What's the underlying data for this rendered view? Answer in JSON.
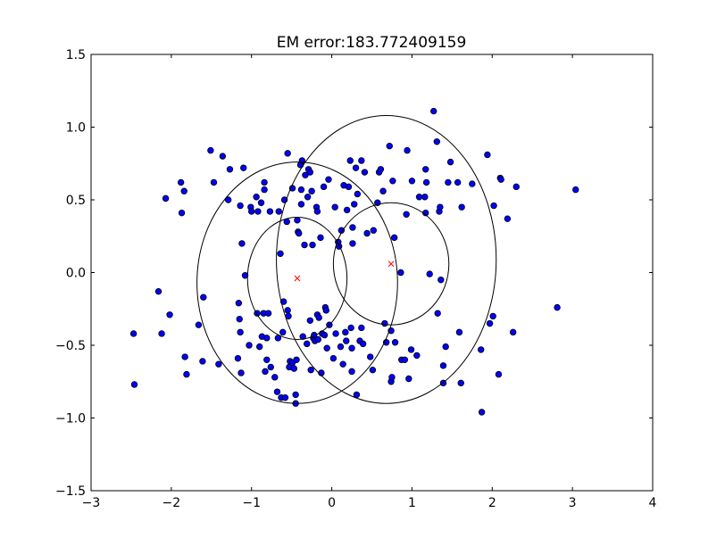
{
  "chart_data": {
    "type": "scatter",
    "title": "EM error:183.772409159",
    "xlabel": "",
    "ylabel": "",
    "xlim": [
      -3,
      4
    ],
    "ylim": [
      -1.5,
      1.5
    ],
    "xticks": [
      -3,
      -2,
      -1,
      0,
      1,
      2,
      3,
      4
    ],
    "yticks": [
      -1.5,
      -1.0,
      -0.5,
      0.0,
      0.5,
      1.0,
      1.5
    ],
    "xtick_labels": [
      "−3",
      "−2",
      "−1",
      "0",
      "1",
      "2",
      "3",
      "4"
    ],
    "ytick_labels": [
      "−1.5",
      "−1.0",
      "−0.5",
      "0.0",
      "0.5",
      "1.0",
      "1.5"
    ],
    "grid": false,
    "legend": "none",
    "point_color": "#0000ff",
    "center_color": "#ff0000",
    "ellipse_color": "#000000",
    "points": [
      [
        -2.47,
        -0.42
      ],
      [
        -2.46,
        -0.77
      ],
      [
        -2.16,
        -0.13
      ],
      [
        -2.12,
        -0.42
      ],
      [
        -2.07,
        0.51
      ],
      [
        -2.02,
        -0.29
      ],
      [
        -1.88,
        0.62
      ],
      [
        -1.87,
        0.41
      ],
      [
        -1.84,
        0.56
      ],
      [
        -1.83,
        -0.58
      ],
      [
        -1.81,
        -0.7
      ],
      [
        -1.66,
        -0.36
      ],
      [
        -1.61,
        -0.61
      ],
      [
        -1.6,
        -0.17
      ],
      [
        -1.51,
        0.84
      ],
      [
        -1.47,
        0.62
      ],
      [
        -1.41,
        -0.63
      ],
      [
        -1.36,
        0.8
      ],
      [
        -1.29,
        0.5
      ],
      [
        -1.27,
        0.71
      ],
      [
        -1.17,
        -0.59
      ],
      [
        -1.16,
        -0.21
      ],
      [
        -1.15,
        -0.32
      ],
      [
        -1.14,
        -0.41
      ],
      [
        -1.14,
        0.46
      ],
      [
        -1.13,
        -0.69
      ],
      [
        -1.12,
        0.2
      ],
      [
        -1.1,
        0.72
      ],
      [
        -1.08,
        -0.02
      ],
      [
        -1.03,
        -0.5
      ],
      [
        -1.01,
        0.45
      ],
      [
        -1.0,
        0.42
      ],
      [
        -0.94,
        0.52
      ],
      [
        -0.93,
        -0.28
      ],
      [
        -0.92,
        0.42
      ],
      [
        -0.9,
        -0.51
      ],
      [
        -0.88,
        0.48
      ],
      [
        -0.87,
        -0.44
      ],
      [
        -0.85,
        -0.28
      ],
      [
        -0.84,
        0.57
      ],
      [
        -0.84,
        0.62
      ],
      [
        -0.83,
        -0.68
      ],
      [
        -0.81,
        -0.45
      ],
      [
        -0.81,
        -0.6
      ],
      [
        -0.79,
        -0.28
      ],
      [
        -0.77,
        0.42
      ],
      [
        -0.76,
        -0.65
      ],
      [
        -0.71,
        -0.72
      ],
      [
        -0.68,
        -0.82
      ],
      [
        -0.67,
        -0.45
      ],
      [
        -0.66,
        0.42
      ],
      [
        -0.64,
        0.13
      ],
      [
        -0.63,
        -0.86
      ],
      [
        -0.61,
        -0.41
      ],
      [
        -0.6,
        -0.2
      ],
      [
        -0.59,
        0.5
      ],
      [
        -0.58,
        -0.86
      ],
      [
        -0.56,
        0.35
      ],
      [
        -0.55,
        0.82
      ],
      [
        -0.55,
        -0.26
      ],
      [
        -0.54,
        -0.3
      ],
      [
        -0.53,
        -0.65
      ],
      [
        -0.52,
        -0.61
      ],
      [
        -0.49,
        0.58
      ],
      [
        -0.49,
        -0.62
      ],
      [
        -0.47,
        -0.66
      ],
      [
        -0.45,
        -0.84
      ],
      [
        -0.45,
        -0.9
      ],
      [
        -0.44,
        -0.6
      ],
      [
        -0.43,
        0.36
      ],
      [
        -0.42,
        0.28
      ],
      [
        -0.41,
        0.27
      ],
      [
        -0.39,
        0.74
      ],
      [
        -0.38,
        0.47
      ],
      [
        -0.38,
        0.57
      ],
      [
        -0.37,
        0.77
      ],
      [
        -0.36,
        -0.44
      ],
      [
        -0.34,
        0.19
      ],
      [
        -0.33,
        0.67
      ],
      [
        -0.31,
        -0.49
      ],
      [
        -0.3,
        0.52
      ],
      [
        -0.29,
        0.71
      ],
      [
        -0.27,
        0.69
      ],
      [
        -0.27,
        -0.33
      ],
      [
        -0.26,
        -0.67
      ],
      [
        -0.25,
        0.56
      ],
      [
        -0.24,
        0.19
      ],
      [
        -0.23,
        -0.45
      ],
      [
        -0.22,
        -0.43
      ],
      [
        -0.21,
        -0.47
      ],
      [
        -0.19,
        0.45
      ],
      [
        -0.18,
        0.42
      ],
      [
        -0.18,
        -0.29
      ],
      [
        -0.17,
        -0.46
      ],
      [
        -0.16,
        -0.31
      ],
      [
        -0.14,
        0.24
      ],
      [
        -0.13,
        -0.69
      ],
      [
        -0.12,
        -0.42
      ],
      [
        -0.1,
        0.59
      ],
      [
        -0.09,
        -0.43
      ],
      [
        -0.08,
        -0.24
      ],
      [
        -0.07,
        -0.26
      ],
      [
        -0.06,
        -0.52
      ],
      [
        -0.04,
        0.64
      ],
      [
        -0.03,
        -0.36
      ],
      [
        0.02,
        -0.59
      ],
      [
        0.04,
        0.45
      ],
      [
        0.05,
        -0.42
      ],
      [
        0.08,
        0.21
      ],
      [
        0.09,
        0.18
      ],
      [
        0.11,
        -0.51
      ],
      [
        0.12,
        0.29
      ],
      [
        0.14,
        -0.63
      ],
      [
        0.15,
        0.6
      ],
      [
        0.17,
        -0.41
      ],
      [
        0.18,
        -0.47
      ],
      [
        0.19,
        0.43
      ],
      [
        0.21,
        0.59
      ],
      [
        0.23,
        0.77
      ],
      [
        0.24,
        -0.38
      ],
      [
        0.25,
        -0.52
      ],
      [
        0.25,
        -0.68
      ],
      [
        0.26,
        0.2
      ],
      [
        0.26,
        0.31
      ],
      [
        0.28,
        0.47
      ],
      [
        0.3,
        0.72
      ],
      [
        0.31,
        -0.84
      ],
      [
        0.32,
        0.54
      ],
      [
        0.35,
        -0.47
      ],
      [
        0.37,
        -0.38
      ],
      [
        0.37,
        0.77
      ],
      [
        0.39,
        -0.49
      ],
      [
        0.41,
        0.69
      ],
      [
        0.44,
        0.27
      ],
      [
        0.48,
        -0.58
      ],
      [
        0.51,
        -0.67
      ],
      [
        0.52,
        0.29
      ],
      [
        0.57,
        0.48
      ],
      [
        0.59,
        0.69
      ],
      [
        0.61,
        0.71
      ],
      [
        0.64,
        0.56
      ],
      [
        0.66,
        -0.35
      ],
      [
        0.68,
        -0.48
      ],
      [
        0.72,
        0.87
      ],
      [
        0.74,
        -0.75
      ],
      [
        0.74,
        -0.4
      ],
      [
        0.75,
        -0.72
      ],
      [
        0.76,
        0.63
      ],
      [
        0.78,
        0.24
      ],
      [
        0.79,
        -0.48
      ],
      [
        0.86,
        0.0
      ],
      [
        0.87,
        -0.6
      ],
      [
        0.91,
        -0.6
      ],
      [
        0.93,
        0.4
      ],
      [
        0.94,
        0.84
      ],
      [
        0.96,
        -0.73
      ],
      [
        0.99,
        -0.53
      ],
      [
        1.0,
        0.63
      ],
      [
        1.06,
        -0.57
      ],
      [
        1.09,
        0.52
      ],
      [
        1.16,
        0.52
      ],
      [
        1.17,
        0.41
      ],
      [
        1.17,
        0.71
      ],
      [
        1.18,
        0.62
      ],
      [
        1.22,
        -0.01
      ],
      [
        1.27,
        1.11
      ],
      [
        1.31,
        0.9
      ],
      [
        1.32,
        -0.28
      ],
      [
        1.34,
        0.42
      ],
      [
        1.35,
        0.45
      ],
      [
        1.36,
        -0.05
      ],
      [
        1.39,
        -0.76
      ],
      [
        1.39,
        -0.64
      ],
      [
        1.42,
        -0.51
      ],
      [
        1.45,
        0.62
      ],
      [
        1.48,
        0.76
      ],
      [
        1.57,
        0.62
      ],
      [
        1.59,
        -0.41
      ],
      [
        1.61,
        -0.76
      ],
      [
        1.62,
        0.45
      ],
      [
        1.75,
        0.61
      ],
      [
        1.86,
        -0.53
      ],
      [
        1.87,
        -0.96
      ],
      [
        1.94,
        0.81
      ],
      [
        1.97,
        -0.35
      ],
      [
        2.01,
        -0.3
      ],
      [
        2.02,
        0.46
      ],
      [
        2.08,
        -0.7
      ],
      [
        2.1,
        0.65
      ],
      [
        2.11,
        0.64
      ],
      [
        2.19,
        0.37
      ],
      [
        2.26,
        -0.41
      ],
      [
        2.3,
        0.59
      ],
      [
        2.81,
        -0.24
      ],
      [
        3.04,
        0.57
      ]
    ],
    "components": [
      {
        "mean": [
          -0.43,
          -0.04
        ],
        "circle_radius": [
          0.62,
          0.42
        ]
      },
      {
        "mean": [
          0.74,
          0.06
        ],
        "circle_radius": [
          0.72,
          0.42
        ]
      }
    ],
    "ellipses": [
      {
        "center": [
          -0.43,
          -0.07
        ],
        "rx": 1.25,
        "ry": 0.83
      },
      {
        "center": [
          0.68,
          0.09
        ],
        "rx": 1.37,
        "ry": 0.99
      },
      {
        "center": [
          -0.43,
          -0.04
        ],
        "rx": 0.62,
        "ry": 0.42
      },
      {
        "center": [
          0.74,
          0.06
        ],
        "rx": 0.72,
        "ry": 0.42
      }
    ]
  }
}
